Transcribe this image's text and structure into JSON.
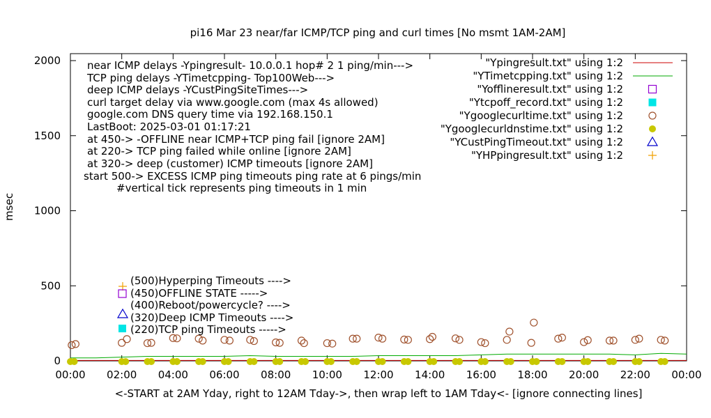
{
  "chart_data": {
    "type": "scatter",
    "title": "pi16 Mar 23  near/far ICMP/TCP ping and curl times [No msmt 1AM-2AM]",
    "xlabel": "<-START at 2AM Yday, right to 12AM Tday->, then wrap left to 1AM Tday<- [ignore connecting lines]",
    "ylabel": "msec",
    "xlim": [
      0,
      24
    ],
    "ylim": [
      0,
      2050
    ],
    "x_unit": "hours",
    "x_tick_labels": [
      "00:00",
      "02:00",
      "04:00",
      "06:00",
      "08:00",
      "10:00",
      "12:00",
      "14:00",
      "16:00",
      "18:00",
      "20:00",
      "22:00",
      "00:00"
    ],
    "y_tick_labels": [
      "0",
      "500",
      "1000",
      "1500",
      "2000"
    ],
    "y_ticks": [
      0,
      500,
      1000,
      1500,
      2000
    ],
    "grid": false,
    "legend_position": "top-right",
    "notes": [
      "near ICMP delays -Ypingresult- 10.0.0.1 hop# 2 1 ping/min--->",
      "TCP ping delays -YTimetcpping- Top100Web--->",
      "deep ICMP delays -YCustPingSiteTimes--->",
      "curl target delay via www.google.com (max 4s allowed)",
      "google.com DNS query time via 192.168.150.1",
      "LastBoot: 2025-03-01 01:17:21",
      "at 450-> -OFFLINE near ICMP+TCP ping fail [ignore 2AM]",
      "at 220-> TCP ping failed while online [ignore 2AM]",
      "at 320-> deep (customer) ICMP timeouts [ignore 2AM]",
      "start 500-> EXCESS ICMP ping timeouts ping rate at 6 pings/min",
      "#vertical tick represents ping timeouts in 1 min"
    ],
    "key_labels": [
      "(500)Hyperping Timeouts ---->",
      "(450)OFFLINE STATE ----->",
      "(400)Reboot/powercycle? ---->",
      "(320)Deep ICMP Timeouts ---->",
      "(220)TCP ping Timeouts ----->"
    ],
    "series": [
      {
        "name": "\"Ypingresult.txt\" using 1:2",
        "color": "#cc0000",
        "style": "line",
        "x": [
          0,
          24
        ],
        "y": [
          3,
          3
        ]
      },
      {
        "name": "\"YTimetcpping.txt\" using 1:2",
        "color": "#00aa00",
        "style": "line",
        "x": [
          0,
          1,
          2,
          3,
          4,
          5,
          6,
          7,
          8,
          9,
          10,
          11,
          12,
          13,
          14,
          15,
          16,
          17,
          18,
          19,
          20,
          21,
          22,
          23,
          24
        ],
        "y": [
          20,
          20,
          25,
          30,
          30,
          30,
          30,
          35,
          30,
          30,
          30,
          30,
          35,
          35,
          35,
          35,
          40,
          45,
          45,
          45,
          45,
          45,
          40,
          50,
          45
        ]
      },
      {
        "name": "\"Yofflineresult.txt\" using 1:2",
        "color": "#9400d3",
        "style": "open-square",
        "x": [],
        "y": []
      },
      {
        "name": "\"Ytcpoff_record.txt\" using 1:2",
        "color": "#00e5e5",
        "style": "filled-square",
        "x": [],
        "y": []
      },
      {
        "name": "\"Ygooglecurltime.txt\" using 1:2",
        "color": "#a0522d",
        "style": "open-circle",
        "x": [
          0.05,
          0.2,
          2.0,
          2.2,
          3.0,
          3.15,
          4.0,
          4.15,
          5.0,
          5.15,
          6.0,
          6.2,
          7.0,
          7.15,
          8.0,
          8.15,
          9.0,
          9.1,
          10.0,
          10.2,
          11.0,
          11.15,
          12.0,
          12.15,
          13.0,
          13.15,
          14.0,
          14.1,
          15.0,
          15.15,
          16.0,
          16.15,
          17.0,
          17.1,
          17.95,
          18.05,
          19.0,
          19.15,
          20.0,
          20.15,
          21.0,
          21.15,
          22.0,
          22.15,
          23.0,
          23.15
        ],
        "y": [
          105,
          112,
          120,
          145,
          118,
          120,
          152,
          150,
          148,
          135,
          140,
          135,
          140,
          132,
          123,
          120,
          135,
          118,
          118,
          115,
          148,
          148,
          155,
          148,
          142,
          140,
          145,
          160,
          150,
          140,
          125,
          118,
          140,
          195,
          120,
          255,
          148,
          155,
          125,
          138,
          135,
          135,
          140,
          148,
          140,
          135
        ]
      },
      {
        "name": "\"Ygooglecurldnstime.txt\" using 1:2",
        "color": "#c8c800",
        "style": "filled-circle",
        "x": [
          0,
          0.15,
          2.0,
          2.15,
          3.0,
          3.15,
          4.0,
          4.15,
          5.0,
          5.15,
          6.0,
          6.15,
          7.0,
          7.15,
          8.0,
          8.15,
          9.0,
          9.15,
          10.0,
          10.15,
          11.0,
          11.15,
          12.0,
          12.15,
          13.0,
          13.15,
          14.0,
          14.15,
          15.0,
          15.15,
          16.0,
          16.15,
          17.0,
          17.15,
          18.0,
          18.15,
          19.0,
          19.15,
          20.0,
          20.15,
          21.0,
          21.15,
          22.0,
          22.15,
          23.0,
          23.15
        ],
        "y": [
          0,
          0,
          0,
          0,
          0,
          0,
          0,
          0,
          0,
          0,
          0,
          0,
          0,
          0,
          0,
          0,
          0,
          0,
          0,
          0,
          0,
          0,
          0,
          0,
          0,
          0,
          0,
          0,
          0,
          0,
          0,
          0,
          0,
          0,
          0,
          0,
          0,
          0,
          0,
          0,
          0,
          0,
          0,
          0,
          0,
          0
        ]
      },
      {
        "name": "\"YCustPingTimeout.txt\" using 1:2",
        "color": "#0000cc",
        "style": "open-triangle",
        "x": [],
        "y": []
      },
      {
        "name": "\"YHPpingresult.txt\" using 1:2",
        "color": "#f0a000",
        "style": "plus",
        "x": [],
        "y": []
      }
    ]
  }
}
